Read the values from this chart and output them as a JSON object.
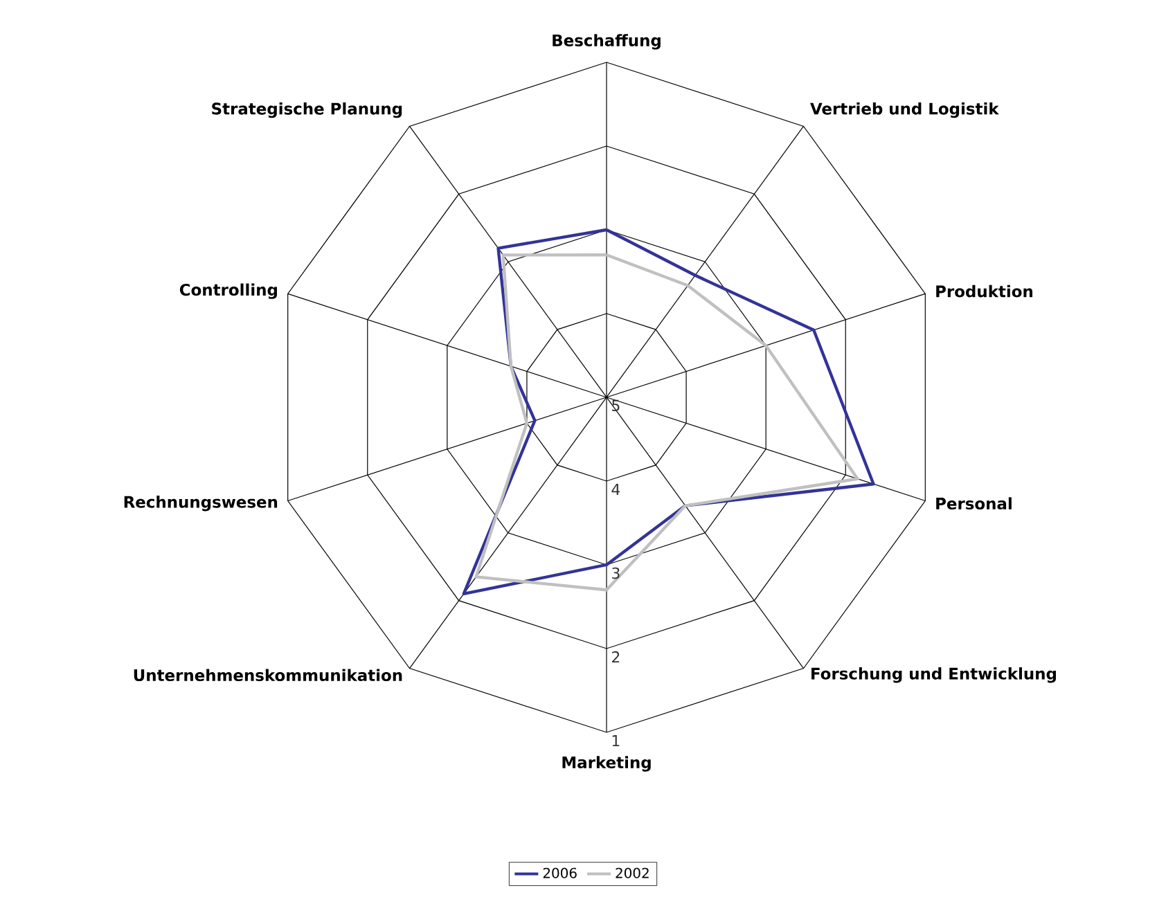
{
  "chart_data": {
    "type": "radar",
    "categories": [
      "Beschaffung",
      "Vertrieb und Logistik",
      "Produktion",
      "Personal",
      "Forschung und Entwicklung",
      "Marketing",
      "Unternehmenskommunikation",
      "Rechnungswesen",
      "Controlling",
      "Strategische Planung"
    ],
    "series": [
      {
        "name": "2006",
        "color": "#333399",
        "values": [
          3.0,
          3.2,
          2.4,
          1.65,
          3.4,
          3.0,
          2.1,
          4.1,
          3.8,
          2.8
        ]
      },
      {
        "name": "2002",
        "color": "#c0c0c0",
        "values": [
          3.3,
          3.35,
          3.0,
          1.85,
          3.4,
          2.7,
          2.35,
          4.0,
          3.8,
          2.9
        ]
      }
    ],
    "ylim": [
      5,
      1
    ],
    "yticks": [
      5,
      4,
      3,
      2,
      1
    ],
    "grid": true,
    "legend": "bottom",
    "marker": "none",
    "line_style": "solid"
  }
}
